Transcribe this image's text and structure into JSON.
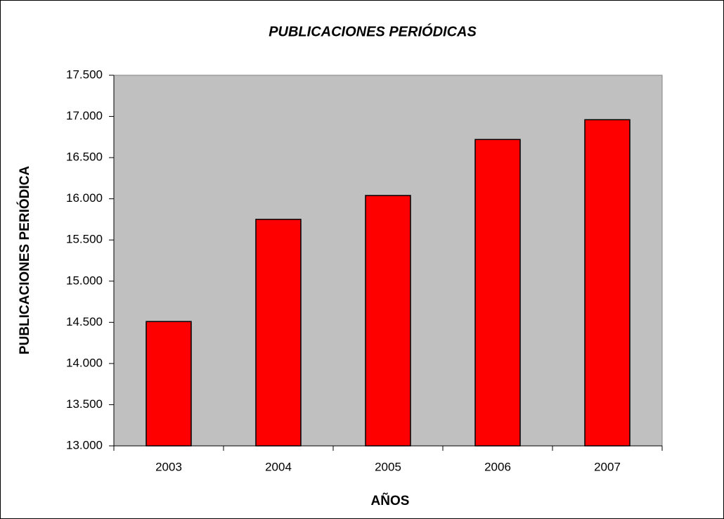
{
  "chart_data": {
    "type": "bar",
    "title": "PUBLICACIONES PERIÓDICAS",
    "x_label": "AÑOS",
    "y_label": "PUBLICACIONES PERIÓDICA",
    "categories": [
      "2003",
      "2004",
      "2005",
      "2006",
      "2007"
    ],
    "values": [
      14510,
      15750,
      16040,
      16720,
      16960
    ],
    "color": "#ff0000",
    "plot_background": "#c0c0c0",
    "ylim": [
      13000,
      17500
    ],
    "yticks": [
      {
        "value": 13000,
        "label": "13.000"
      },
      {
        "value": 13500,
        "label": "13.500"
      },
      {
        "value": 14000,
        "label": "14.000"
      },
      {
        "value": 14500,
        "label": "14.500"
      },
      {
        "value": 15000,
        "label": "15.000"
      },
      {
        "value": 15500,
        "label": "15.500"
      },
      {
        "value": 16000,
        "label": "16.000"
      },
      {
        "value": 16500,
        "label": "16.500"
      },
      {
        "value": 17000,
        "label": "17.000"
      },
      {
        "value": 17500,
        "label": "17.500"
      }
    ],
    "grid": false
  }
}
